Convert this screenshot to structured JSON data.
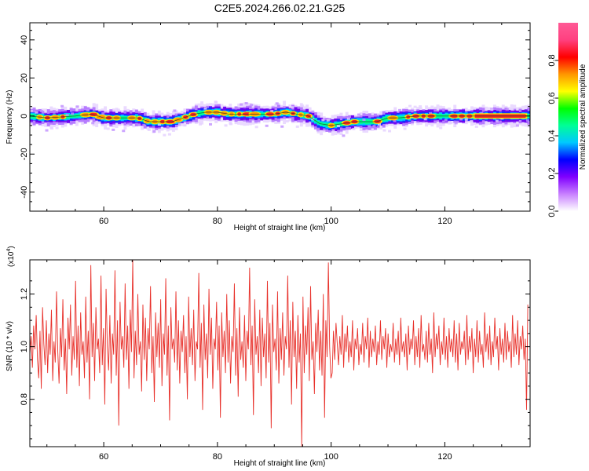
{
  "title": "C2E5.2024.266.02.21.G25",
  "chart_data": [
    {
      "type": "heatmap",
      "xlabel": "Height of straight line (km)",
      "ylabel": "Frequency (Hz)",
      "xlim": [
        47,
        135
      ],
      "ylim": [
        -50,
        49
      ],
      "xticks": [
        60,
        80,
        100,
        120
      ],
      "yticks": [
        -40,
        -20,
        0,
        20,
        40
      ],
      "xtick_labels": [
        "60",
        "80",
        "100",
        "120"
      ],
      "ytick_labels": [
        "-40",
        "-20",
        "0",
        "20",
        "40"
      ],
      "ridge": {
        "x": [
          47,
          50,
          55,
          58,
          60,
          63,
          66,
          68,
          70,
          72,
          74,
          76,
          78,
          80,
          82,
          84,
          86,
          88,
          90,
          92,
          94,
          96,
          97,
          98,
          100,
          102,
          104,
          106,
          108,
          110,
          112,
          115,
          120,
          125,
          130,
          135
        ],
        "y": [
          0,
          -1,
          0,
          1,
          -1,
          -1,
          -1,
          -3,
          -3,
          -3,
          -1,
          1,
          2,
          2,
          1,
          1,
          1,
          1,
          1,
          2,
          1,
          0,
          -2,
          -4,
          -5,
          -4,
          -3,
          -3,
          -3,
          -1,
          -1,
          0,
          0,
          0,
          0,
          0
        ]
      },
      "colorbar": {
        "label": "Normalized spectral amplitude",
        "range": [
          0.0,
          1.0
        ],
        "ticks": [
          "0.0",
          "0.2",
          "0.4",
          "0.6",
          "0.8"
        ],
        "tick_values": [
          0.0,
          0.2,
          0.4,
          0.6,
          0.8
        ],
        "colors": [
          "#ffffff",
          "#c880ff",
          "#8000ff",
          "#0000ff",
          "#00c8ff",
          "#00ff96",
          "#00ff00",
          "#ffff00",
          "#ff9600",
          "#ff0000",
          "#ff4080",
          "#ff5a96"
        ]
      }
    },
    {
      "type": "line",
      "xlabel": "Height of straight line (km)",
      "ylabel": "SNR (10 * v/v)",
      "scale_label": "(x10",
      "scale_exp": "4",
      "scale_close": ")",
      "xlim": [
        47,
        135
      ],
      "ylim": [
        0.62,
        1.33
      ],
      "xticks": [
        60,
        80,
        100,
        120
      ],
      "yticks": [
        0.8,
        1.0,
        1.2
      ],
      "xtick_labels": [
        "60",
        "80",
        "100",
        "120"
      ],
      "ytick_labels": [
        "0.8",
        "1.0",
        "1.2"
      ],
      "series": [
        {
          "color": "#e8302a",
          "x_start": 47,
          "x_end": 134.6,
          "values": [
            0.97,
            1.04,
            0.92,
            1.08,
            0.99,
            1.12,
            0.95,
            0.88,
            1.06,
            0.84,
            1.15,
            1.01,
            0.93,
            1.1,
            0.9,
            1.05,
            0.97,
            1.14,
            0.87,
            1.02,
            0.94,
            1.21,
            0.98,
            0.86,
            1.07,
            0.96,
            1.18,
            0.91,
            1.03,
            0.82,
            1.11,
            0.99,
            1.16,
            0.89,
            1.04,
            0.95,
            1.25,
            0.92,
            1.08,
            0.85,
            1.13,
            0.97,
            1.02,
            0.88,
            1.19,
            0.94,
            1.06,
            0.8,
            1.31,
            0.96,
            1.09,
            0.87,
            1.15,
            0.99,
            1.03,
            0.9,
            1.27,
            0.93,
            1.07,
            0.78,
            1.22,
            1.0,
            0.91,
            1.12,
            0.86,
            1.05,
            0.97,
            1.29,
            0.89,
            1.1,
            0.7,
            1.17,
            0.99,
            1.04,
            0.92,
            1.24,
            0.95,
            1.08,
            0.84,
            1.14,
            0.98,
            1.33,
            0.88,
            1.06,
            0.93,
            1.2,
            0.97,
            1.02,
            0.83,
            1.16,
            0.95,
            1.11,
            0.87,
            1.07,
            0.99,
            1.23,
            0.9,
            1.04,
            0.79,
            1.13,
            0.96,
            1.09,
            0.92,
            1.18,
            0.85,
            1.05,
            0.97,
            1.26,
            0.89,
            1.08,
            0.72,
            1.15,
            0.99,
            1.03,
            0.94,
            1.21,
            0.91,
            1.1,
            0.86,
            1.06,
            0.98,
            1.12,
            0.9,
            1.04,
            0.8,
            1.19,
            0.96,
            1.07,
            0.93,
            1.14,
            0.87,
            1.02,
            0.99,
            1.28,
            0.92,
            1.09,
            0.76,
            1.16,
            0.95,
            1.05,
            0.88,
            1.22,
            0.97,
            1.11,
            0.84,
            1.03,
            0.99,
            1.17,
            0.91,
            1.08,
            0.73,
            1.13,
            0.96,
            1.06,
            0.9,
            1.2,
            0.94,
            1.1,
            0.86,
            1.04,
            0.98,
            1.24,
            0.89,
            1.07,
            0.81,
            1.15,
            0.95,
            1.02,
            0.92,
            1.12,
            0.87,
            1.06,
            0.99,
            1.3,
            0.93,
            1.08,
            0.74,
            1.18,
            0.97,
            1.04,
            0.9,
            1.14,
            0.85,
            1.11,
            0.96,
            1.05,
            0.88,
            1.25,
            0.94,
            1.09,
            0.69,
            1.16,
            0.98,
            1.03,
            0.91,
            1.21,
            0.86,
            1.07,
            0.95,
            1.13,
            0.89,
            1.04,
            0.99,
            1.27,
            0.92,
            1.1,
            0.78,
            1.17,
            0.96,
            1.06,
            0.84,
            1.12,
            0.94,
            1.05,
            0.62,
            1.19,
            0.9,
            1.08,
            0.97,
            1.15,
            0.87,
            1.23,
            0.95,
            1.02,
            0.82,
            1.09,
            0.98,
            1.14,
            0.91,
            1.06,
            0.89,
            1.2,
            0.73,
            1.1,
            0.96,
            1.32,
            1.0,
            0.88,
            0.9,
            1.06,
            0.95,
            1.09,
            1.01,
            0.93,
            1.04,
            0.97,
            1.12,
            0.92,
            1.05,
            0.98,
            1.08,
            0.94,
            1.02,
            0.96,
            1.1,
            0.91,
            1.03,
            0.99,
            1.07,
            0.93,
            1.01,
            0.97,
            1.09,
            0.94,
            1.04,
            0.99,
            1.11,
            0.92,
            1.06,
            0.96,
            1.03,
            0.98,
            1.08,
            0.93,
            1.02,
            0.97,
            1.1,
            0.95,
            1.04,
            0.99,
            1.07,
            0.92,
            1.05,
            0.96,
            1.01,
            0.98,
            1.09,
            0.94,
            1.03,
            0.97,
            1.06,
            0.93,
            1.11,
            0.98,
            1.02,
            0.96,
            1.05,
            0.91,
            1.08,
            0.97,
            1.03,
            0.99,
            1.1,
            0.93,
            1.04,
            0.96,
            1.07,
            0.92,
            1.12,
            0.98,
            1.01,
            0.95,
            1.06,
            0.94,
            1.09,
            0.97,
            1.03,
            0.9,
            1.13,
            0.96,
            1.05,
            0.99,
            1.08,
            0.93,
            1.02,
            0.97,
            1.11,
            0.95,
            1.04,
            0.92,
            1.07,
            0.98,
            1.03,
            0.96,
            1.1,
            0.94,
            1.05,
            0.91,
            1.09,
            0.97,
            1.02,
            0.99,
            1.06,
            0.93,
            1.12,
            0.95,
            1.04,
            0.98,
            1.07,
            0.9,
            1.03,
            0.96,
            1.1,
            0.94,
            1.06,
            0.97,
            1.01,
            0.92,
            1.13,
            0.98,
            1.05,
            0.95,
            1.08,
            0.93,
            1.02,
            0.96,
            1.11,
            0.99,
            1.04,
            0.91,
            1.07,
            0.97,
            1.03,
            0.94,
            1.09,
            0.95,
            1.06,
            0.98,
            1.02,
            0.92,
            1.12,
            0.96,
            1.05,
            0.97,
            1.1,
            0.93,
            1.04,
            0.99,
            1.08,
            0.95,
            1.03,
            0.76,
            1.16
          ]
        }
      ]
    }
  ]
}
